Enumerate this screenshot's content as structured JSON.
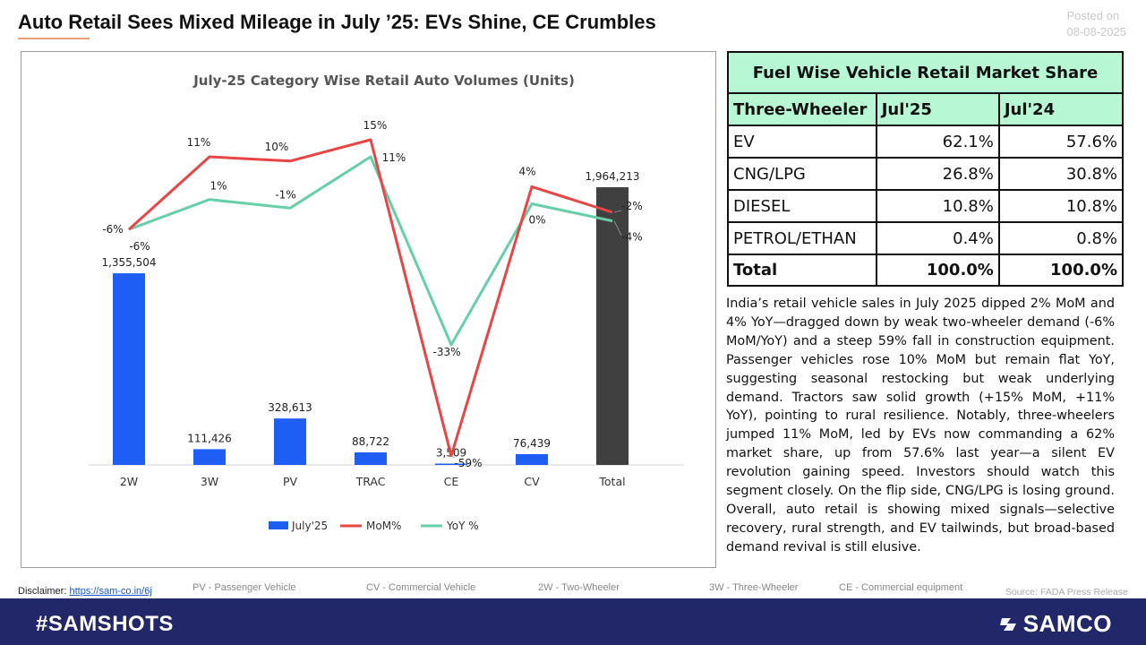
{
  "header": {
    "title": "Auto Retail Sees Mixed Mileage in July ’25: EVs Shine, CE Crumbles",
    "posted_label": "Posted on",
    "posted_date": "08-08-2025"
  },
  "colors": {
    "bar": "#1f5ef5",
    "bar_total": "#404040",
    "mom_line": "#e84545",
    "yoy_line": "#66cfa8",
    "table_header": "#b7f7d4",
    "footer": "#22276a"
  },
  "chart_data": {
    "type": "bar",
    "title": "July-25 Category Wise Retail Auto Volumes (Units)",
    "categories": [
      "2W",
      "3W",
      "PV",
      "TRAC",
      "CE",
      "CV",
      "Total"
    ],
    "series": [
      {
        "name": "July'25",
        "type": "bar",
        "values": [
          1355504,
          111426,
          328613,
          88722,
          3509,
          76439,
          1964213
        ],
        "labels": [
          "1,355,504",
          "111,426",
          "328,613",
          "88,722",
          "3,509",
          "76,439",
          "1,964,213"
        ]
      },
      {
        "name": "MoM%",
        "type": "line",
        "values": [
          -6,
          11,
          10,
          15,
          -59,
          4,
          -2
        ],
        "labels": [
          "-6%",
          "11%",
          "10%",
          "15%",
          "-59%",
          "4%",
          "-2%"
        ]
      },
      {
        "name": "YoY %",
        "type": "line",
        "values": [
          -6,
          1,
          -1,
          11,
          -33,
          0,
          -4
        ],
        "labels": [
          "-6%",
          "1%",
          "-1%",
          "11%",
          "-33%",
          "0%",
          "-4%"
        ]
      }
    ],
    "xlabel": "",
    "ylabel": "",
    "grid": false,
    "legend": "bottom"
  },
  "table": {
    "title": "Fuel Wise Vehicle Retail Market Share",
    "headers": [
      "Three-Wheeler",
      "Jul'25",
      "Jul'24"
    ],
    "rows": [
      [
        "EV",
        "62.1%",
        "57.6%"
      ],
      [
        "CNG/LPG",
        "26.8%",
        "30.8%"
      ],
      [
        "DIESEL",
        "10.8%",
        "10.8%"
      ],
      [
        "PETROL/ETHAN",
        "0.4%",
        "0.8%"
      ]
    ],
    "total": [
      "Total",
      "100.0%",
      "100.0%"
    ]
  },
  "commentary": "India’s retail vehicle sales in July 2025 dipped 2% MoM and 4% YoY—dragged down by weak two-wheeler demand (-6% MoM/YoY) and a steep 59% fall in construction equipment. Passenger vehicles rose 10% MoM but remain flat YoY, suggesting seasonal restocking but weak underlying demand. Tractors saw solid growth (+15% MoM, +11% YoY), pointing to rural resilience. Notably, three-wheelers jumped 11% MoM, led by EVs now commanding a 62% market share, up from 57.6% last year—a silent EV revolution gaining speed. Investors should watch this segment closely. On the flip side, CNG/LPG is losing ground. Overall, auto retail is showing mixed signals—selective recovery, rural strength, and EV tailwinds, but broad-based demand revival is still elusive.",
  "footer": {
    "disclaimer_label": "Disclaimer:",
    "disclaimer_link": "https://sam-co.in/6j",
    "abbreviations": [
      "PV - Passenger Vehicle",
      "CV - Commercial Vehicle",
      "2W - Two-Wheeler",
      "3W - Three-Wheeler",
      "CE - Commercial equipment"
    ],
    "source": "Source: FADA Press Release",
    "hashtag": "#SAMSHOTS",
    "brand": "SAMCO"
  }
}
